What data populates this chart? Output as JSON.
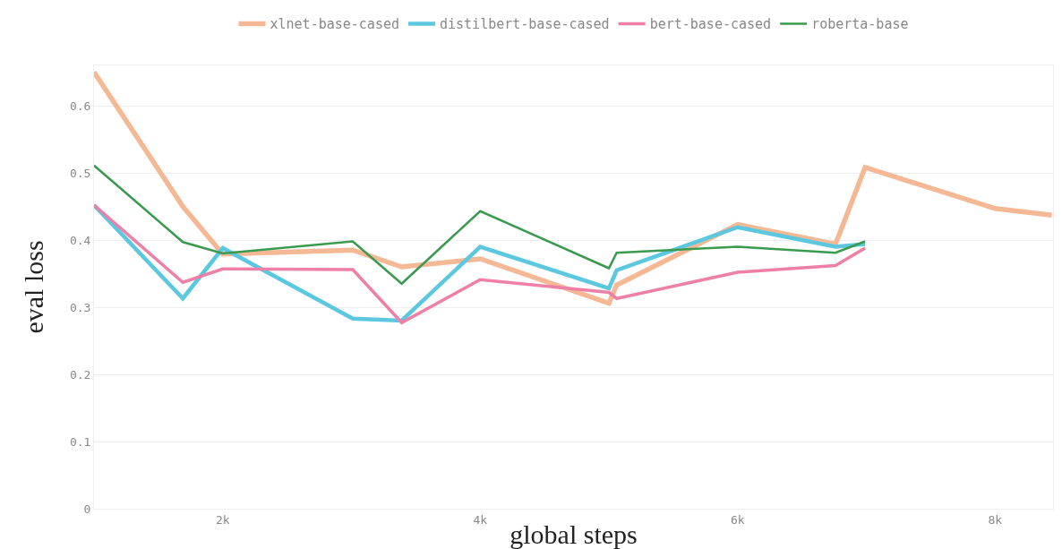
{
  "chart_data": {
    "type": "line",
    "xlabel": "global steps",
    "ylabel": "eval loss",
    "xlim": [
      1000,
      8450
    ],
    "xticks": [
      {
        "value": 2000,
        "label": "2k"
      },
      {
        "value": 4000,
        "label": "4k"
      },
      {
        "value": 6000,
        "label": "6k"
      },
      {
        "value": 8000,
        "label": "8k"
      }
    ],
    "ylim": [
      0,
      0.66
    ],
    "yticks": [
      0,
      0.1,
      0.2,
      0.3,
      0.4,
      0.5,
      0.6
    ],
    "grid": "y",
    "legend": "top",
    "line_style": "solid",
    "series": [
      {
        "name": "xlnet-base-cased",
        "color": "#f5b895",
        "x": [
          1000,
          1690,
          2000,
          3010,
          3390,
          4000,
          5000,
          5060,
          6000,
          6760,
          6990,
          8000,
          8440
        ],
        "values": [
          0.65,
          0.45,
          0.379,
          0.385,
          0.36,
          0.372,
          0.306,
          0.333,
          0.423,
          0.394,
          0.508,
          0.447,
          0.437
        ]
      },
      {
        "name": "distilbert-base-cased",
        "color": "#5bc8e0",
        "x": [
          1000,
          1690,
          2000,
          3010,
          3390,
          4000,
          5000,
          5060,
          6000,
          6760,
          6990
        ],
        "values": [
          0.452,
          0.313,
          0.388,
          0.283,
          0.28,
          0.39,
          0.328,
          0.355,
          0.419,
          0.39,
          0.394
        ]
      },
      {
        "name": "bert-base-cased",
        "color": "#ee7fa6",
        "x": [
          1000,
          1690,
          2000,
          3010,
          3390,
          4000,
          5000,
          5060,
          6000,
          6760,
          6990
        ],
        "values": [
          0.452,
          0.337,
          0.357,
          0.356,
          0.277,
          0.341,
          0.322,
          0.313,
          0.352,
          0.362,
          0.388
        ]
      },
      {
        "name": "roberta-base",
        "color": "#3a9a4f",
        "x": [
          1000,
          1690,
          2000,
          3010,
          3390,
          4000,
          5000,
          5060,
          6000,
          6760,
          6990
        ],
        "values": [
          0.511,
          0.397,
          0.38,
          0.398,
          0.335,
          0.443,
          0.358,
          0.381,
          0.39,
          0.381,
          0.398
        ]
      }
    ]
  }
}
